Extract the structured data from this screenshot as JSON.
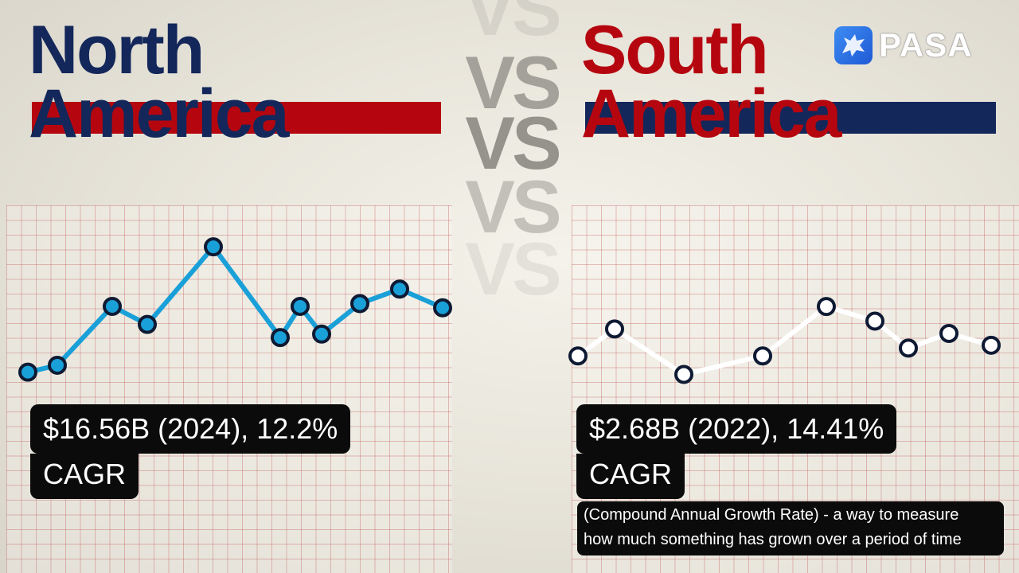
{
  "left": {
    "title_line1": "North",
    "title_line2": "America",
    "title_color": "#13275a",
    "bar_color": "#b5060f",
    "stat_line1": "$16.56B (2024), 12.2%",
    "stat_line2": "CAGR"
  },
  "right": {
    "title_line1": "South",
    "title_line2": "America",
    "title_color": "#b5060f",
    "bar_color": "#13275a",
    "stat_line1": "$2.68B (2022), 14.41%",
    "stat_line2": "CAGR",
    "definition_line1": "(Compound Annual Growth Rate) - a way to measure",
    "definition_line2": "how much something has grown over a period of time"
  },
  "vs": [
    "VS",
    "VS",
    "VS",
    "VS",
    "VS"
  ],
  "logo": {
    "text": "PASA",
    "icon": "bull-icon"
  },
  "chart_data": [
    {
      "type": "line",
      "series": [
        {
          "values": [
            5,
            15,
            100,
            74,
            186,
            55,
            100,
            60,
            104,
            125,
            98
          ]
        }
      ],
      "line_color": "#1aa0d8",
      "marker_color": "#1aa0d8",
      "ylim": [
        0,
        200
      ]
    },
    {
      "type": "line",
      "series": [
        {
          "values": [
            38,
            86,
            5,
            38,
            126,
            100,
            52,
            78,
            57
          ]
        }
      ],
      "line_color": "#ffffff",
      "marker_color": "#ffffff",
      "ylim": [
        0,
        200
      ]
    }
  ]
}
